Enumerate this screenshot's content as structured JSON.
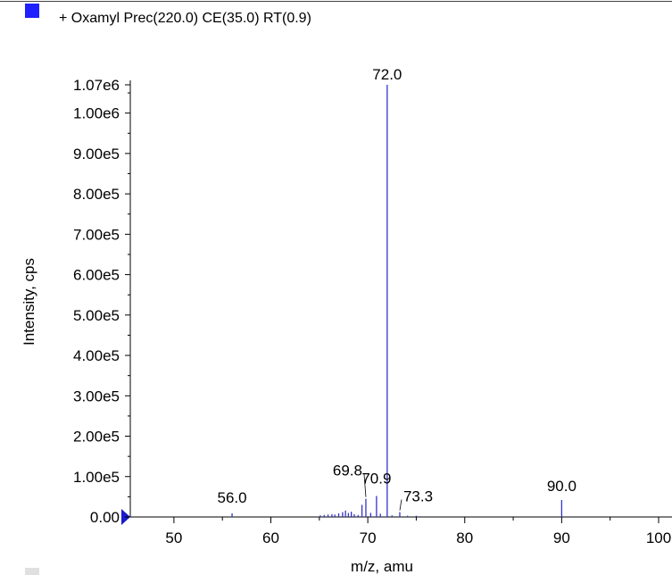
{
  "chart_data": {
    "type": "bar",
    "legend": {
      "label": "+ Oxamyl Prec(220.0) CE(35.0) RT(0.9)",
      "color": "#1f1fff",
      "placement": "top-left"
    },
    "xlabel": "m/z, amu",
    "ylabel": "Intensity, cps",
    "xlim": [
      45.5,
      100
    ],
    "ylim": [
      0,
      1070000
    ],
    "x_ticks": [
      50,
      60,
      70,
      80,
      90,
      100
    ],
    "x_tick_labels": [
      "50",
      "60",
      "70",
      "80",
      "90",
      "100"
    ],
    "y_ticks": [
      0,
      100000,
      200000,
      300000,
      400000,
      500000,
      600000,
      700000,
      800000,
      900000,
      1000000,
      1070000
    ],
    "y_tick_labels": [
      "0.00",
      "1.00e5",
      "2.00e5",
      "3.00e5",
      "4.00e5",
      "5.00e5",
      "6.00e5",
      "7.00e5",
      "8.00e5",
      "9.00e5",
      "1.00e6",
      "1.07e6"
    ],
    "bar_color": "#3333cc",
    "marker_color": "#1a1acc",
    "peaks": [
      {
        "x": 56.0,
        "y": 9000
      },
      {
        "x": 65.1,
        "y": 4000
      },
      {
        "x": 65.5,
        "y": 5000
      },
      {
        "x": 65.9,
        "y": 6000
      },
      {
        "x": 66.3,
        "y": 7000
      },
      {
        "x": 66.6,
        "y": 6000
      },
      {
        "x": 67.0,
        "y": 9000
      },
      {
        "x": 67.4,
        "y": 12000
      },
      {
        "x": 67.7,
        "y": 16000
      },
      {
        "x": 68.0,
        "y": 10000
      },
      {
        "x": 68.3,
        "y": 13000
      },
      {
        "x": 68.6,
        "y": 7000
      },
      {
        "x": 69.0,
        "y": 5000
      },
      {
        "x": 69.4,
        "y": 30000
      },
      {
        "x": 69.8,
        "y": 45000
      },
      {
        "x": 70.3,
        "y": 10000
      },
      {
        "x": 70.9,
        "y": 52000
      },
      {
        "x": 71.3,
        "y": 8000
      },
      {
        "x": 72.0,
        "y": 1070000
      },
      {
        "x": 72.5,
        "y": 4000
      },
      {
        "x": 73.3,
        "y": 12000
      },
      {
        "x": 74.1,
        "y": 3000
      },
      {
        "x": 75.0,
        "y": 3000
      },
      {
        "x": 90.0,
        "y": 42000
      }
    ],
    "annotations": [
      {
        "label": "56.0",
        "x": 56.0
      },
      {
        "label": "69.8",
        "x": 69.8
      },
      {
        "label": "70.9",
        "x": 70.9
      },
      {
        "label": "72.0",
        "x": 72.0
      },
      {
        "label": "73.3",
        "x": 73.3
      },
      {
        "label": "90.0",
        "x": 90.0
      }
    ]
  }
}
